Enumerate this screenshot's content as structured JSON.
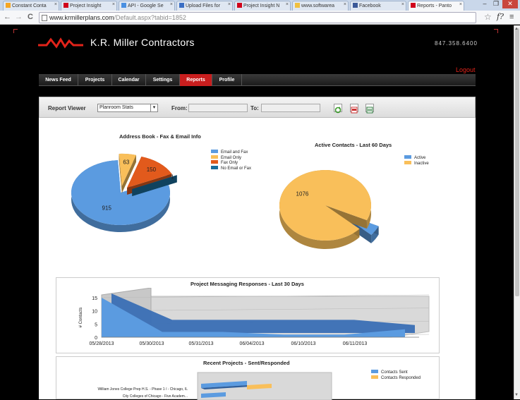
{
  "browser": {
    "tabs": [
      {
        "label": "Constant Conta",
        "color": "#f5a623",
        "active": false
      },
      {
        "label": "Project Insight",
        "color": "#d0021b",
        "active": false
      },
      {
        "label": "API - Google Se",
        "color": "#4a90e2",
        "active": false
      },
      {
        "label": "Upload Files for",
        "color": "#3b6fc4",
        "active": false
      },
      {
        "label": "Project Insight N",
        "color": "#d0021b",
        "active": false
      },
      {
        "label": "www.softwarea",
        "color": "#f0c040",
        "active": false
      },
      {
        "label": "Facebook",
        "color": "#3b5998",
        "active": false
      },
      {
        "label": "Reports - Panto",
        "color": "#d0021b",
        "active": true
      }
    ],
    "url_host": "www.krmillerplans.com",
    "url_path": "/Default.aspx?tabid=1852",
    "minimize": "–",
    "maximize": "❐",
    "close": "✕",
    "back": "←",
    "forward": "→",
    "reload": "C",
    "star": "☆",
    "ext_label": "f?",
    "menu": "≡"
  },
  "site": {
    "brand": "K.R. Miller Contractors",
    "phone": "847.358.6400",
    "logout": "Logout",
    "accent": "#e2231a",
    "nav": [
      "News Feed",
      "Projects",
      "Calendar",
      "Settings",
      "Reports",
      "Profile"
    ],
    "active_nav": "Reports"
  },
  "report_viewer": {
    "label": "Report Viewer",
    "selected_report": "Planroom Stats",
    "from_label": "From:",
    "to_label": "To:"
  },
  "chart_data": [
    {
      "type": "pie",
      "title": "Address Book - Fax & Email Info",
      "categories": [
        "Email and Fax",
        "Email Only",
        "Fax Only",
        "No Email or Fax"
      ],
      "values": [
        915,
        63,
        150,
        1
      ],
      "value_labels": [
        "915",
        "63",
        "150",
        "1"
      ],
      "colors": [
        "#5b9be0",
        "#f9bf5a",
        "#e25a1c",
        "#1a6e9c"
      ],
      "legend": "top-right"
    },
    {
      "type": "pie",
      "title": "Active Contacts - Last 60 Days",
      "categories": [
        "Active",
        "Inactive"
      ],
      "values": [
        53,
        1076
      ],
      "value_labels": [
        "53",
        "1076"
      ],
      "colors": [
        "#5b9be0",
        "#f9bf5a"
      ],
      "legend": "top-right"
    },
    {
      "type": "area",
      "title": "Project Messaging Responses - Last 30 Days",
      "ylabel": "# Contacts",
      "x": [
        "05/28/2013",
        "05/30/2013",
        "05/31/2013",
        "06/04/2013",
        "06/10/2013",
        "06/11/2013"
      ],
      "y_ticks": [
        "0",
        "5",
        "10",
        "15"
      ],
      "series": [
        {
          "values": [
            15,
            2,
            2,
            1,
            1,
            3
          ],
          "color": "#5b9be0"
        },
        {
          "values": [
            15,
            5,
            5,
            5,
            5,
            3
          ],
          "color": "#3a6fb5"
        }
      ],
      "ylim": [
        0,
        15
      ]
    },
    {
      "type": "bar",
      "title": "Recent Projects - Sent/Responded",
      "categories": [
        "William Jones College Prep H.S. - Phase 1 / - Chicago, IL",
        "City Colleges of Chicago - Five Academ..."
      ],
      "series": [
        {
          "name": "Contacts Sent",
          "color": "#5b9be0"
        },
        {
          "name": "Contacts Responded",
          "color": "#f9bf5a"
        }
      ],
      "legend": "top-right"
    }
  ]
}
